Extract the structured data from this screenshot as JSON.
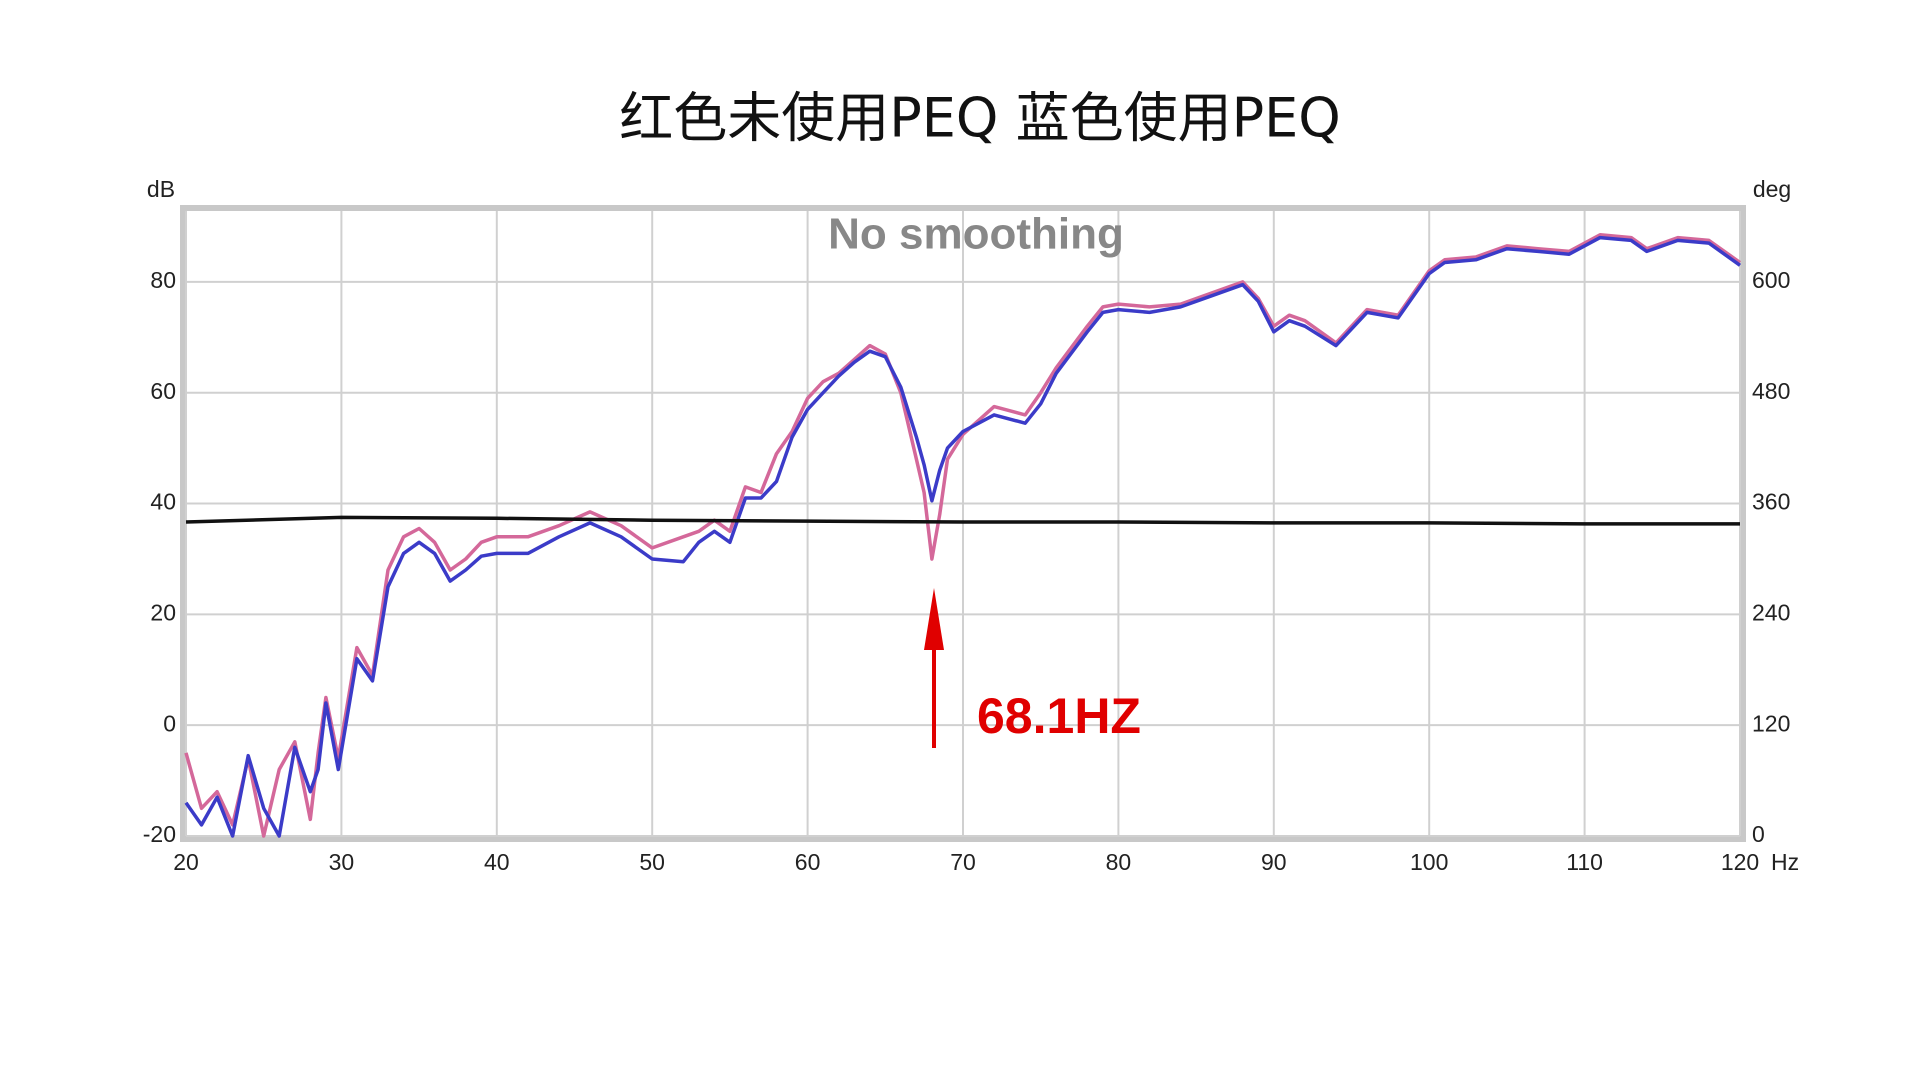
{
  "chart_data": {
    "type": "line",
    "title": "红色未使用PEQ 蓝色使用PEQ",
    "annotation": "No smoothing",
    "marker_label": "68.1HZ",
    "y_label": "dB",
    "y2_label": "deg",
    "x_label": "Hz",
    "xlim": [
      20,
      120
    ],
    "xticks": [
      20,
      30,
      40,
      50,
      60,
      70,
      80,
      90,
      100,
      110,
      120
    ],
    "ylim": [
      -20,
      92.8
    ],
    "yticks": [
      -20,
      0,
      20,
      40,
      60,
      80
    ],
    "y2lim": [
      0,
      676.8
    ],
    "y2ticks": [
      0,
      120,
      240,
      360,
      480,
      600
    ],
    "grid": true,
    "x": [
      20,
      21,
      22,
      23,
      24,
      25,
      26,
      27,
      28,
      28.5,
      29,
      29.8,
      31,
      32,
      33,
      34,
      35,
      36,
      37,
      38,
      39,
      40,
      42,
      44,
      46,
      48,
      50,
      52,
      53,
      54,
      55,
      56,
      57,
      58,
      59,
      60,
      61,
      62,
      63,
      64,
      65,
      66,
      67,
      67.5,
      68,
      68.5,
      69,
      70,
      72,
      74,
      75,
      76,
      78,
      79,
      80,
      82,
      84,
      86,
      88,
      89,
      90,
      91,
      92,
      94,
      96,
      98,
      100,
      101,
      103,
      105,
      107,
      109,
      111,
      113,
      114,
      116,
      118,
      120
    ],
    "series": [
      {
        "color": "#d4689a",
        "values": [
          -5,
          -15,
          -12,
          -18,
          -6,
          -20,
          -8,
          -3,
          -17,
          -5,
          5,
          -6,
          14,
          9,
          28,
          34,
          35.5,
          33,
          28,
          30,
          33,
          34,
          34,
          36,
          38.5,
          36,
          32,
          34,
          35,
          37,
          35,
          43,
          42,
          49,
          53,
          59,
          62,
          63.5,
          66,
          68.5,
          67,
          60,
          48,
          42,
          30,
          38,
          48,
          52.5,
          57.5,
          56,
          60,
          64.5,
          72,
          75.5,
          76,
          75.5,
          76,
          78,
          80,
          77,
          72,
          74,
          73,
          69,
          75,
          74,
          82,
          84,
          84.5,
          86.5,
          86,
          85.5,
          88.5,
          88,
          86,
          88,
          87.5,
          83.5
        ]
      },
      {
        "color": "#3b3bc8",
        "values": [
          -14,
          -18,
          -13,
          -20,
          -5.5,
          -15,
          -20,
          -4,
          -12,
          -8,
          4,
          -8,
          12,
          8,
          25,
          31,
          33,
          31,
          26,
          28,
          30.5,
          31,
          31,
          34,
          36.5,
          34,
          30,
          29.5,
          33,
          35,
          33,
          41,
          41,
          44,
          52,
          57,
          60,
          63,
          65.5,
          67.5,
          66.5,
          61,
          52,
          47,
          40.5,
          46,
          50,
          53,
          56,
          54.5,
          58,
          63.5,
          71,
          74.5,
          75,
          74.5,
          75.5,
          77.5,
          79.5,
          76.5,
          71,
          73,
          72,
          68.5,
          74.5,
          73.5,
          81.5,
          83.5,
          84,
          86,
          85.5,
          85,
          88,
          87.5,
          85.5,
          87.5,
          87,
          83
        ]
      },
      {
        "color": "#111111",
        "axis": "y2",
        "x": [
          20,
          30,
          40,
          50,
          60,
          70,
          80,
          90,
          100,
          110,
          120
        ],
        "values": [
          340,
          345,
          344,
          342,
          341,
          340,
          340,
          339,
          339,
          338,
          338
        ]
      }
    ]
  }
}
